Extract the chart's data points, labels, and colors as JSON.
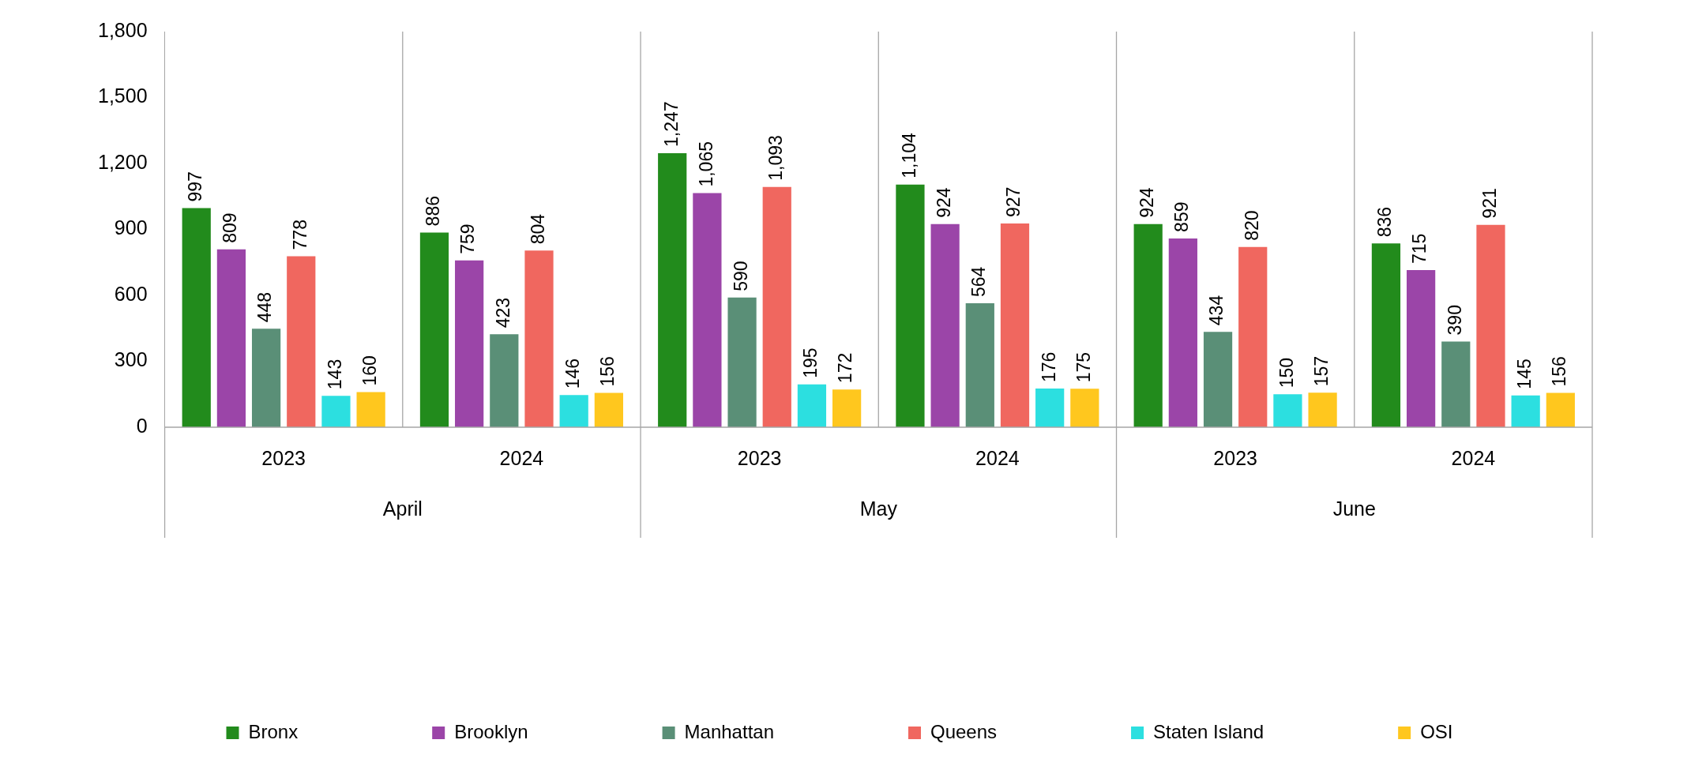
{
  "chart_data": {
    "type": "bar",
    "categories": [
      "2023",
      "2024",
      "2023",
      "2024",
      "2023",
      "2024"
    ],
    "annotations": [
      "April",
      "May",
      "June"
    ],
    "series": [
      {
        "name": "Bronx",
        "color": "#228b1c",
        "values": [
          997,
          886,
          1247,
          1104,
          924,
          836
        ],
        "value_labels": [
          "997",
          "886",
          "1,247",
          "1,104",
          "924",
          "836"
        ]
      },
      {
        "name": "Brooklyn",
        "color": "#9b45a8",
        "values": [
          809,
          759,
          1065,
          924,
          859,
          715
        ],
        "value_labels": [
          "809",
          "759",
          "1,065",
          "924",
          "859",
          "715"
        ]
      },
      {
        "name": "Manhattan",
        "color": "#5a8f77",
        "values": [
          448,
          423,
          590,
          564,
          434,
          390
        ],
        "value_labels": [
          "448",
          "423",
          "590",
          "564",
          "434",
          "390"
        ]
      },
      {
        "name": "Queens",
        "color": "#f0675f",
        "values": [
          778,
          804,
          1093,
          927,
          820,
          921
        ],
        "value_labels": [
          "778",
          "804",
          "1,093",
          "927",
          "820",
          "921"
        ]
      },
      {
        "name": "Staten Island",
        "color": "#2cdfe0",
        "values": [
          143,
          146,
          195,
          176,
          150,
          145
        ],
        "value_labels": [
          "143",
          "146",
          "195",
          "176",
          "150",
          "145"
        ]
      },
      {
        "name": "OSI",
        "color": "#ffc71e",
        "values": [
          160,
          156,
          172,
          175,
          157,
          156
        ],
        "value_labels": [
          "160",
          "156",
          "172",
          "175",
          "157",
          "156"
        ]
      }
    ],
    "ylim": [
      0,
      1800
    ],
    "yticks": [
      0,
      300,
      600,
      {
        "value": 900,
        "label": "900"
      },
      {
        "value": 1200,
        "label": "1,200"
      },
      {
        "value": 1500,
        "label": "1,500"
      },
      {
        "value": 1800,
        "label": "1,800"
      }
    ],
    "grid": "x",
    "legend": "bottom"
  }
}
